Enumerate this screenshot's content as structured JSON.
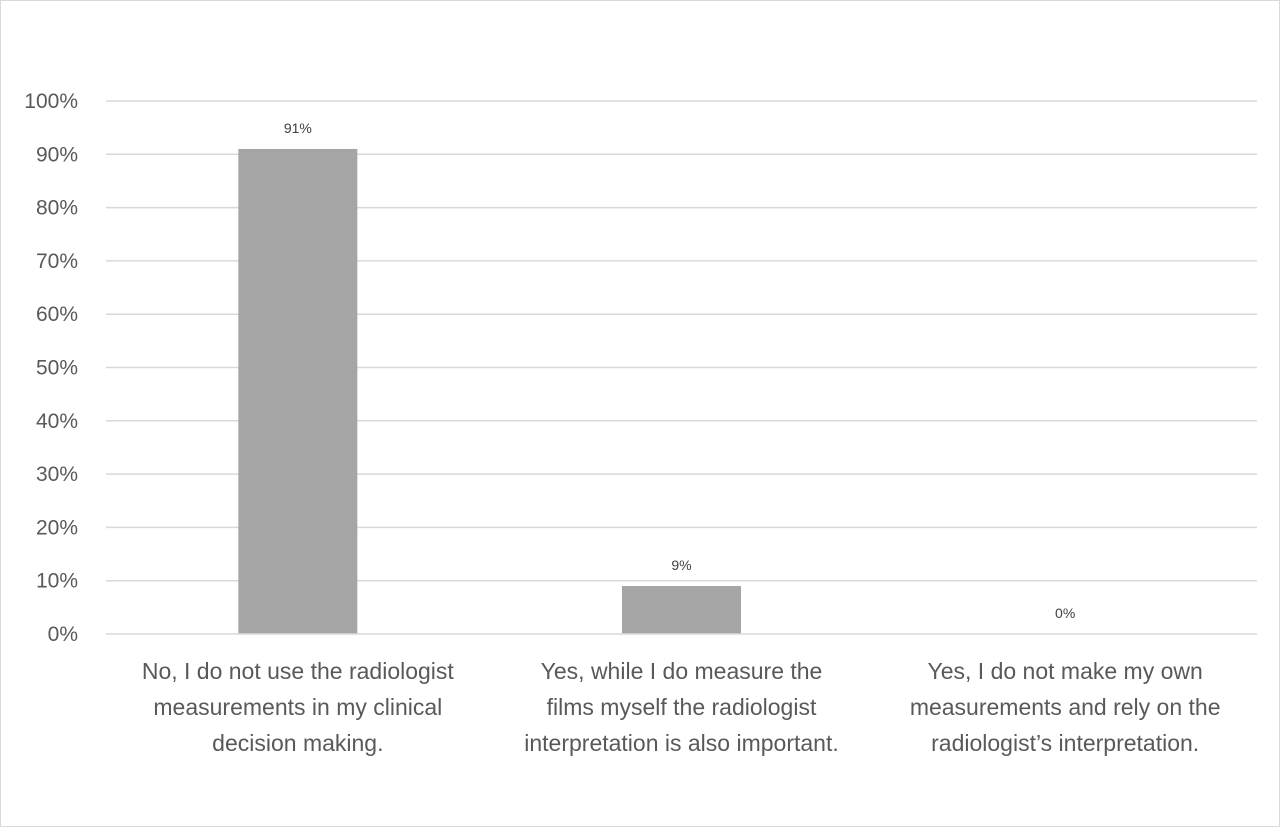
{
  "chart_data": {
    "type": "bar",
    "categories": [
      "No, I do not use the radiologist measurements in my clinical decision making.",
      "Yes, while I do measure the films myself the radiologist interpretation is also important.",
      "Yes, I do not make my own measurements and rely on the radiologist’s interpretation."
    ],
    "category_lines": [
      [
        "No, I do not use the radiologist",
        "measurements in my clinical",
        "decision making."
      ],
      [
        "Yes, while I do measure the",
        "films myself the radiologist",
        "interpretation is also important."
      ],
      [
        "Yes, I do not make my own",
        "measurements and rely on the",
        "radiologist’s interpretation."
      ]
    ],
    "values": [
      91,
      9,
      0
    ],
    "data_labels": [
      "91%",
      "9%",
      "0%"
    ],
    "yticks": [
      0,
      10,
      20,
      30,
      40,
      50,
      60,
      70,
      80,
      90,
      100
    ],
    "ytick_labels": [
      "0%",
      "10%",
      "20%",
      "30%",
      "40%",
      "50%",
      "60%",
      "70%",
      "80%",
      "90%",
      "100%"
    ],
    "ylim": [
      0,
      100
    ],
    "title": "",
    "xlabel": "",
    "ylabel": "",
    "grid": "horizontal",
    "legend": "none",
    "colors": {
      "bar": "#a5a5a5",
      "grid": "#d9d9d9",
      "text": "#595959"
    }
  }
}
